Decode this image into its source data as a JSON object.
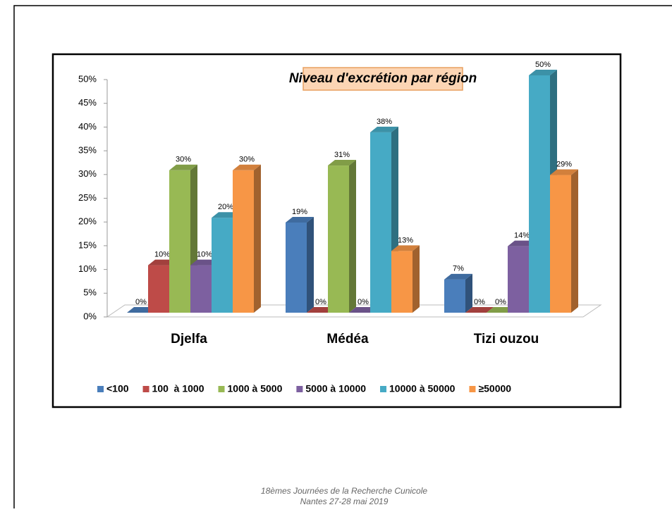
{
  "chart_data": {
    "type": "bar3d",
    "title": "Niveau d'excrétion par région",
    "categories": [
      "Djelfa",
      "Médéa",
      "Tizi ouzou"
    ],
    "series": [
      {
        "name": "<100",
        "color": "#4a7ebb",
        "values": [
          0,
          19,
          7
        ],
        "value_labels": [
          "0%",
          "19%",
          "7%"
        ]
      },
      {
        "name": "100  à 1000",
        "color": "#be4b48",
        "values": [
          10,
          0,
          0
        ],
        "value_labels": [
          "10%",
          "0%",
          "0%"
        ]
      },
      {
        "name": "1000 à 5000",
        "color": "#98b954",
        "values": [
          30,
          31,
          0
        ],
        "value_labels": [
          "30%",
          "31%",
          "0%"
        ]
      },
      {
        "name": "5000 à 10000",
        "color": "#7d60a0",
        "values": [
          10,
          0,
          14
        ],
        "value_labels": [
          "10%",
          "0%",
          "14%"
        ]
      },
      {
        "name": "10000 à 50000",
        "color": "#46aac5",
        "values": [
          20,
          38,
          50
        ],
        "value_labels": [
          "20%",
          "38%",
          "50%"
        ]
      },
      {
        "name": "≥50000",
        "color": "#f79646",
        "values": [
          30,
          13,
          29
        ],
        "value_labels": [
          "30%",
          "13%",
          "29%"
        ]
      }
    ],
    "ylim": [
      0,
      50
    ],
    "yticks": [
      {
        "value": 0,
        "label": "0%"
      },
      {
        "value": 5,
        "label": "5%"
      },
      {
        "value": 10,
        "label": "10%"
      },
      {
        "value": 15,
        "label": "15%"
      },
      {
        "value": 20,
        "label": "20%"
      },
      {
        "value": 25,
        "label": "25%"
      },
      {
        "value": 30,
        "label": "30%"
      },
      {
        "value": 35,
        "label": "35%"
      },
      {
        "value": 40,
        "label": "40%"
      },
      {
        "value": 45,
        "label": "45%"
      },
      {
        "value": 50,
        "label": "50%"
      }
    ],
    "legend": "bottom"
  },
  "footer": {
    "line1": "18èmes Journées de la Recherche Cunicole",
    "line2": "Nantes 27-28 mai 2019"
  }
}
